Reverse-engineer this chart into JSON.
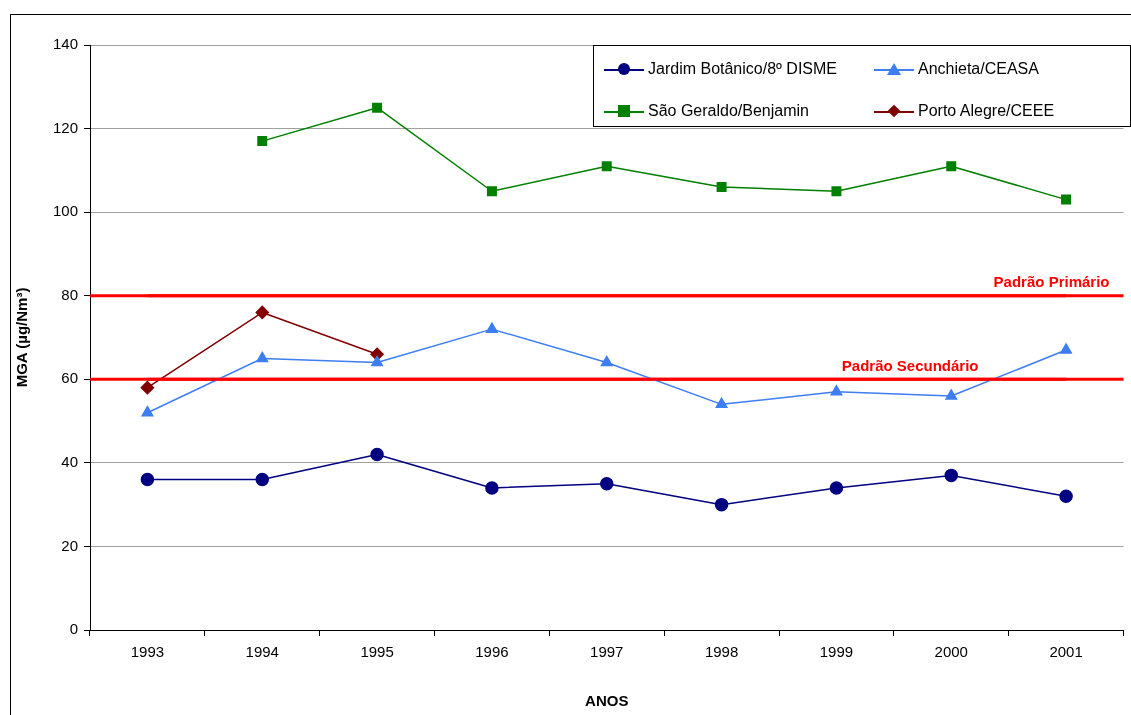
{
  "chart_data": {
    "type": "line",
    "xlabel": "ANOS",
    "ylabel": "MGA (µg/Nm³)",
    "categories": [
      "1993",
      "1994",
      "1995",
      "1996",
      "1997",
      "1998",
      "1999",
      "2000",
      "2001"
    ],
    "series": [
      {
        "name": "Jardim Botânico/8º DISME",
        "color": "#000080",
        "marker": "circle",
        "values": [
          36,
          36,
          42,
          34,
          35,
          30,
          34,
          37,
          32
        ]
      },
      {
        "name": "Anchieta/CEASA",
        "color": "#3d7ef5",
        "marker": "triangle",
        "values": [
          52,
          65,
          64,
          72,
          64,
          54,
          57,
          56,
          67
        ]
      },
      {
        "name": "São Geraldo/Benjamin",
        "color": "#008000",
        "marker": "square",
        "values": [
          null,
          117,
          125,
          105,
          111,
          106,
          105,
          111,
          103
        ]
      },
      {
        "name": "Porto Alegre/CEEE",
        "color": "#800000",
        "marker": "diamond",
        "values": [
          58,
          76,
          66,
          null,
          null,
          null,
          null,
          null,
          null
        ]
      }
    ],
    "ylim": [
      0,
      140
    ],
    "yticks": [
      0,
      20,
      40,
      60,
      80,
      100,
      120,
      140
    ],
    "grid": "y",
    "legend": "top right",
    "ref_lines": [
      {
        "axis": "y",
        "value": 80,
        "label": "Padrão Primário",
        "color": "#ff0000"
      },
      {
        "axis": "y",
        "value": 60,
        "label": "Padrão Secundário",
        "color": "#ff0000"
      }
    ]
  }
}
